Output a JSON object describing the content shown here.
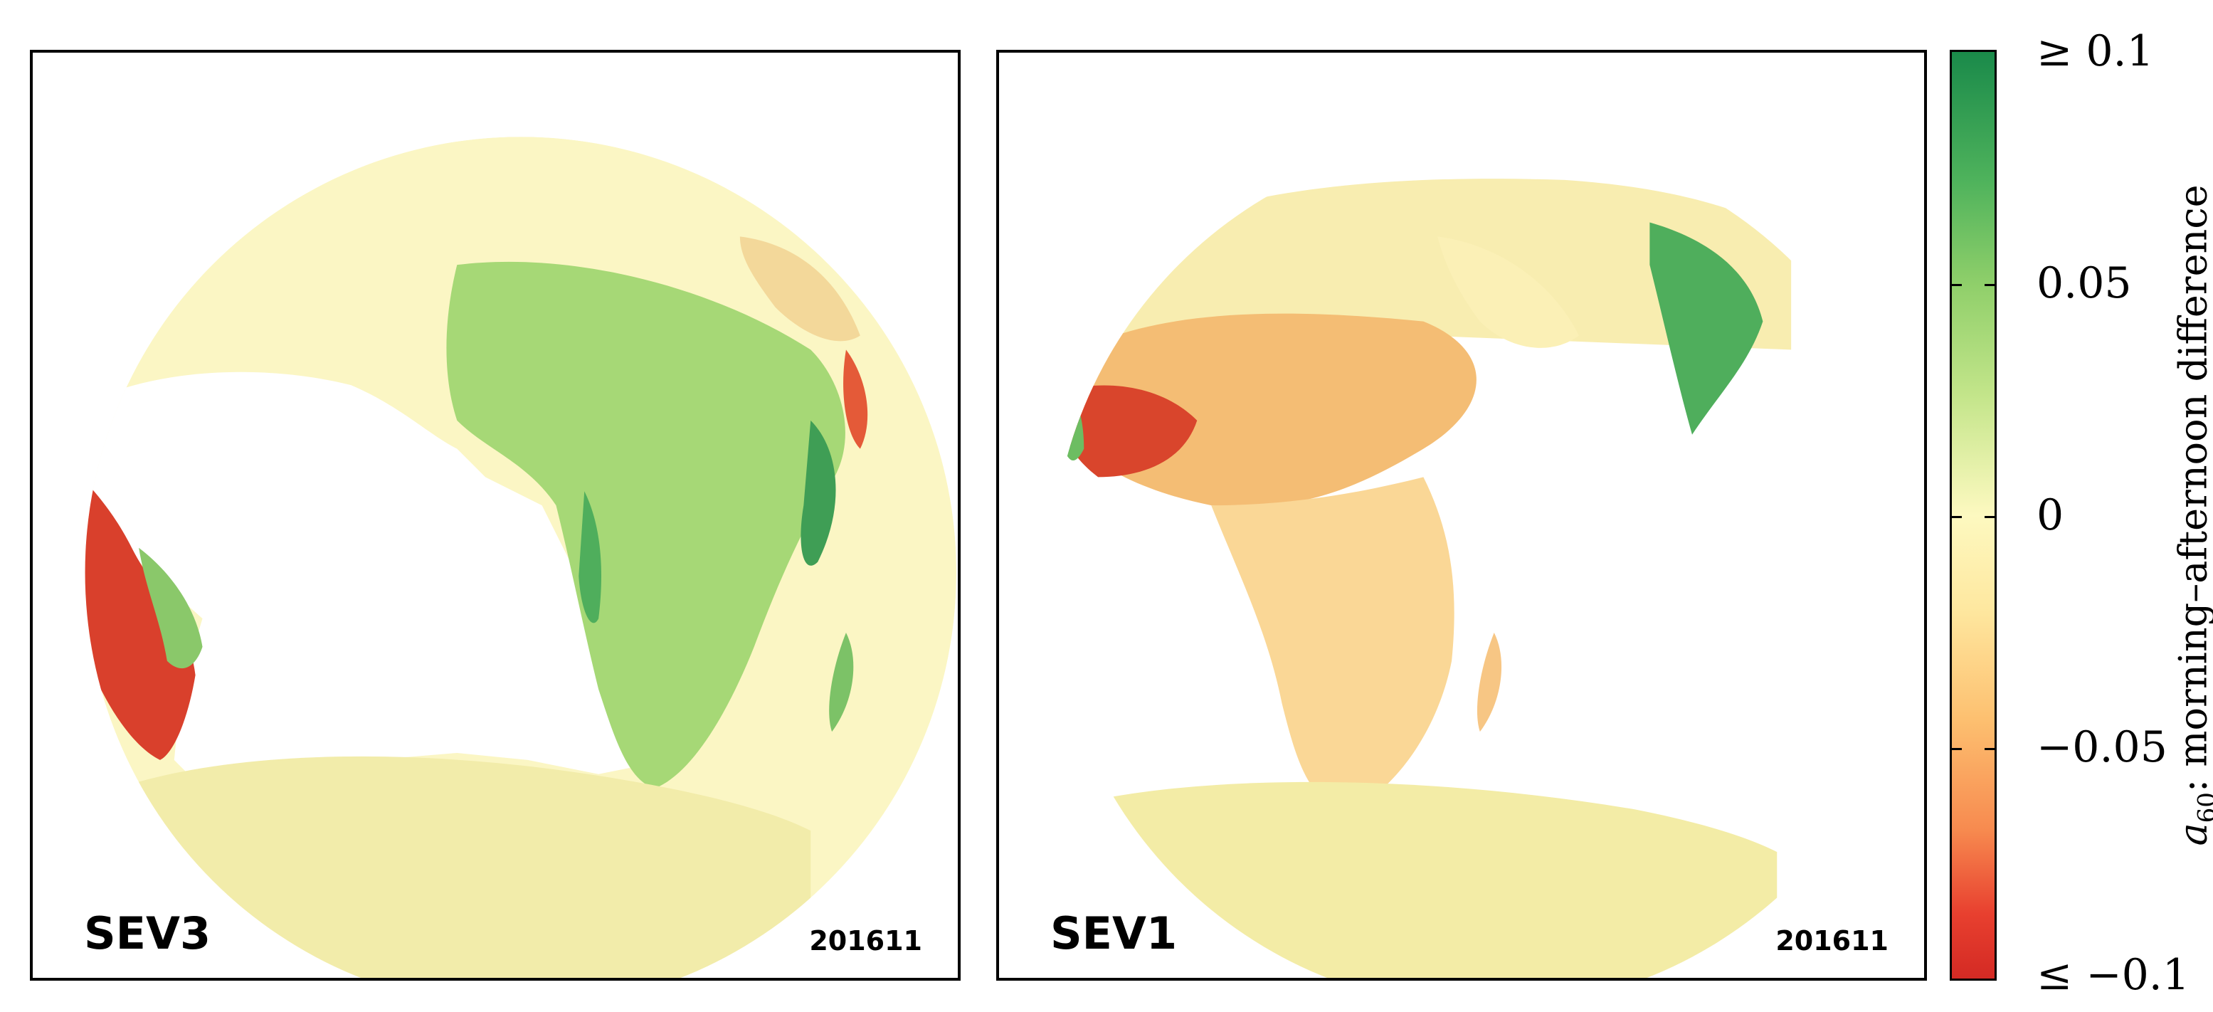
{
  "panels": [
    {
      "satellite": "SEV3",
      "date": "201611"
    },
    {
      "satellite": "SEV1",
      "date": "201611"
    }
  ],
  "colorbar": {
    "title_symbol": "a",
    "title_subscript": "60",
    "title_text": ": morning–afternoon difference",
    "ticks": [
      "≥ 0.1",
      "0.05",
      "0",
      "−0.05",
      "≤ −0.1"
    ],
    "range": [
      -0.1,
      0.1
    ],
    "colors": {
      "max": "#1a8a4a",
      "mid": "#fdf9c0",
      "min": "#d42a24"
    }
  }
}
